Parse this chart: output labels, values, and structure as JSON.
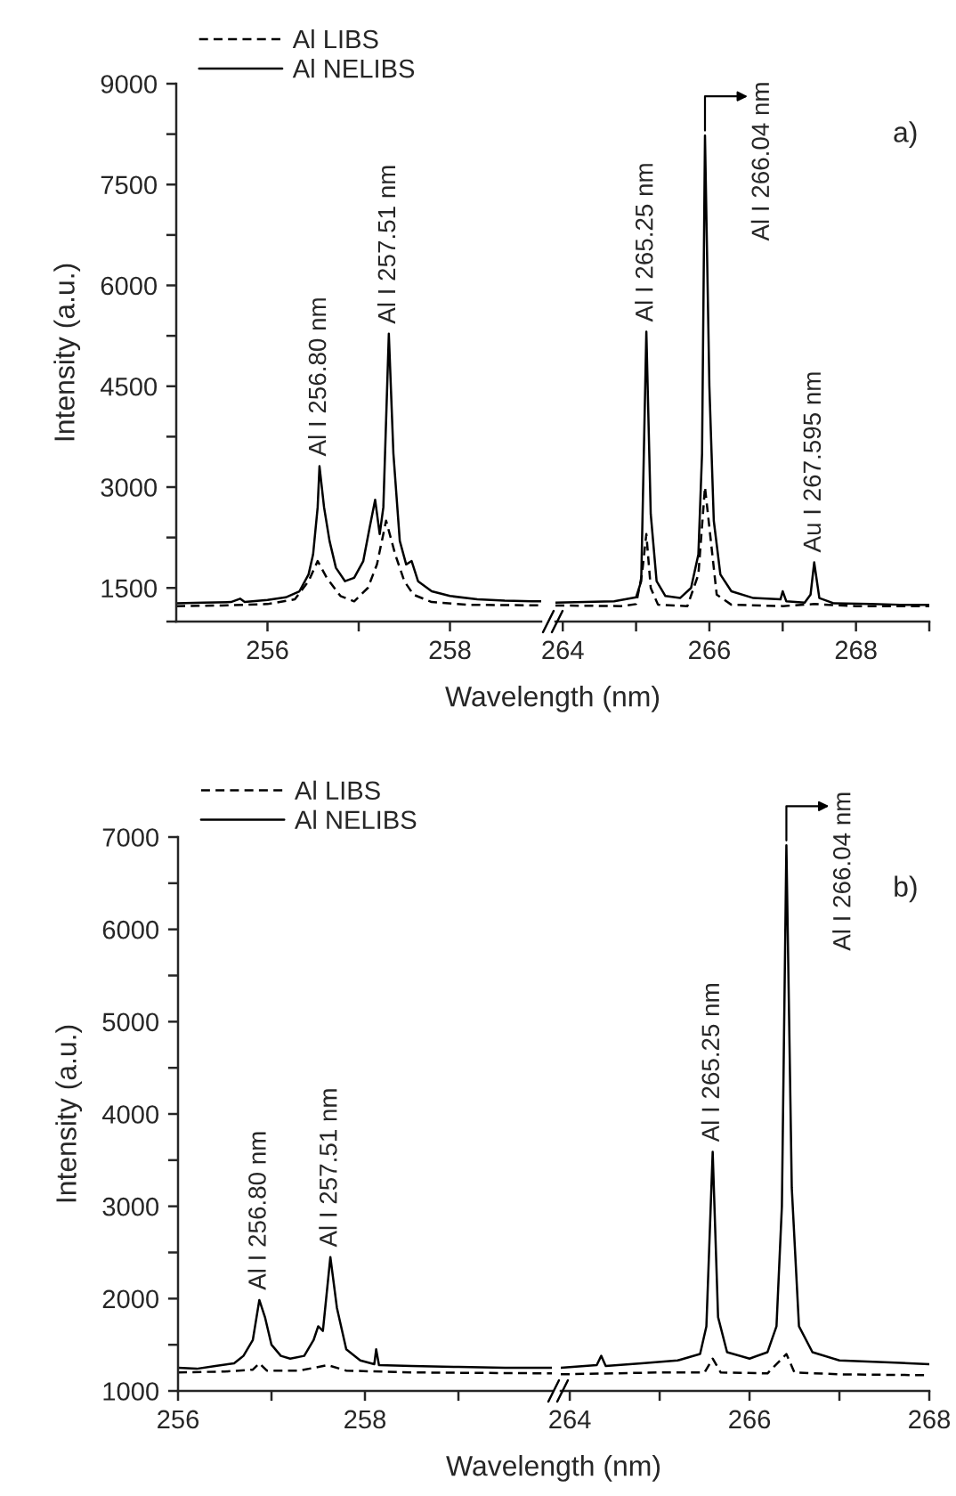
{
  "chart_data": [
    {
      "type": "line",
      "ylabel": "Intensity (a.u.)",
      "xlabel": "Wavelength (nm)",
      "legend": "top left",
      "marker": "none",
      "grid": false,
      "xlim": [
        255,
        259
      ],
      "xticks": [
        256,
        {
          "value": 257,
          "label": null
        },
        258
      ],
      "ylim": [
        1000,
        9000
      ],
      "yticks": [
        {
          "value": 1000,
          "label": null
        },
        1500,
        {
          "value": 2250,
          "label": null
        },
        3000,
        {
          "value": 3750,
          "label": null
        },
        4500,
        {
          "value": 5250,
          "label": null
        },
        6000,
        {
          "value": 6750,
          "label": null
        },
        7500,
        {
          "value": 8250,
          "label": null
        },
        9000
      ],
      "series": [
        {
          "name": "Al LIBS",
          "color": "#000000",
          "line_style": "dashed",
          "x": [
            255.0,
            255.5,
            256.0,
            256.3,
            256.45,
            256.55,
            256.65,
            256.8,
            256.95,
            257.1,
            257.2,
            257.3,
            257.4,
            257.5,
            257.6,
            257.8,
            258.2,
            259.0
          ],
          "values": [
            1230,
            1240,
            1260,
            1330,
            1600,
            1900,
            1650,
            1380,
            1300,
            1500,
            1850,
            2500,
            2000,
            1600,
            1400,
            1290,
            1250,
            1240
          ]
        },
        {
          "name": "Al NELIBS",
          "color": "#000000",
          "line_style": "solid",
          "x": [
            255.0,
            255.3,
            255.6,
            255.7,
            255.75,
            256.0,
            256.2,
            256.35,
            256.45,
            256.5,
            256.55,
            256.57,
            256.62,
            256.68,
            256.75,
            256.85,
            256.95,
            257.05,
            257.12,
            257.18,
            257.23,
            257.27,
            257.33,
            257.38,
            257.45,
            257.52,
            257.58,
            257.65,
            257.8,
            258.0,
            258.3,
            258.6,
            258.9,
            259.0
          ],
          "values": [
            1270,
            1280,
            1290,
            1340,
            1290,
            1320,
            1360,
            1450,
            1700,
            2000,
            2700,
            3310,
            2700,
            2200,
            1800,
            1600,
            1650,
            1900,
            2400,
            2810,
            2300,
            2700,
            5280,
            3500,
            2200,
            1850,
            1900,
            1600,
            1450,
            1380,
            1330,
            1310,
            1300,
            1300
          ]
        }
      ],
      "annotations": [
        {
          "text": "Al I 256.80 nm",
          "x": 256.57,
          "y": 3310
        },
        {
          "text": "Al I 257.51 nm",
          "x": 257.33,
          "y": 5280
        }
      ]
    },
    {
      "type": "line",
      "tick_labels": "x",
      "marker": "none",
      "grid": false,
      "xlim": [
        263.9,
        269
      ],
      "xticks": [
        264,
        {
          "value": 265,
          "label": null
        },
        266,
        {
          "value": 267,
          "label": null
        },
        268,
        {
          "value": 269,
          "label": null
        }
      ],
      "ylim": [
        1000,
        9000
      ],
      "series": [
        {
          "color": "#000000",
          "line_style": "dashed",
          "x": [
            263.9,
            264.8,
            265.0,
            265.08,
            265.14,
            265.2,
            265.3,
            265.7,
            265.85,
            265.94,
            266.02,
            266.1,
            266.3,
            267.0,
            267.43,
            268.0,
            269.0
          ],
          "values": [
            1240,
            1230,
            1260,
            1700,
            2300,
            1500,
            1250,
            1230,
            1700,
            3000,
            2200,
            1400,
            1250,
            1230,
            1260,
            1230,
            1230
          ]
        },
        {
          "color": "#000000",
          "line_style": "solid",
          "x": [
            263.9,
            264.3,
            264.7,
            265.0,
            265.07,
            265.14,
            265.2,
            265.28,
            265.4,
            265.6,
            265.75,
            265.85,
            265.9,
            265.94,
            266.0,
            266.06,
            266.15,
            266.3,
            266.6,
            266.97,
            267.0,
            267.05,
            267.3,
            267.38,
            267.43,
            267.5,
            267.7,
            268.2,
            268.6,
            269.0
          ],
          "values": [
            1280,
            1290,
            1300,
            1360,
            1600,
            5310,
            2600,
            1600,
            1380,
            1350,
            1500,
            2000,
            3500,
            8230,
            4500,
            2500,
            1700,
            1450,
            1350,
            1330,
            1450,
            1300,
            1280,
            1400,
            1880,
            1350,
            1270,
            1260,
            1250,
            1250
          ]
        }
      ],
      "annotations": [
        "a)",
        {
          "text": "Al I 265.25 nm",
          "x": 265.14,
          "y": 5310
        },
        {
          "text": "Al I 266.04 nm",
          "x": 265.94,
          "y": 8230
        },
        {
          "text": "Au I 267.595 nm",
          "x": 267.43,
          "y": 1880
        }
      ]
    },
    {
      "type": "line",
      "ylabel": "Intensity (a.u.)",
      "xlabel": "Wavelength (nm)",
      "legend": "top left",
      "marker": "none",
      "grid": false,
      "xlim": [
        256,
        260
      ],
      "xticks": [
        256,
        {
          "value": 257,
          "label": null
        },
        258,
        {
          "value": 259,
          "label": null
        }
      ],
      "ylim": [
        1000,
        7000
      ],
      "yticks": [
        1000,
        {
          "value": 1500,
          "label": null
        },
        2000,
        {
          "value": 2500,
          "label": null
        },
        3000,
        {
          "value": 3500,
          "label": null
        },
        4000,
        {
          "value": 4500,
          "label": null
        },
        5000,
        {
          "value": 5500,
          "label": null
        },
        6000,
        {
          "value": 6500,
          "label": null
        },
        7000
      ],
      "series": [
        {
          "name": "Al LIBS",
          "color": "#000000",
          "line_style": "dashed",
          "x": [
            256.0,
            256.5,
            256.8,
            256.87,
            256.95,
            257.3,
            257.6,
            257.8,
            258.5,
            260.0
          ],
          "values": [
            1200,
            1210,
            1230,
            1300,
            1220,
            1220,
            1280,
            1220,
            1200,
            1190
          ]
        },
        {
          "name": "Al NELIBS",
          "color": "#000000",
          "line_style": "solid",
          "x": [
            256.0,
            256.2,
            256.4,
            256.6,
            256.7,
            256.8,
            256.87,
            256.93,
            257.0,
            257.1,
            257.2,
            257.35,
            257.45,
            257.5,
            257.55,
            257.63,
            257.7,
            257.8,
            257.95,
            258.1,
            258.12,
            258.15,
            258.5,
            259.0,
            259.5,
            260.0
          ],
          "values": [
            1250,
            1240,
            1270,
            1300,
            1380,
            1550,
            1985,
            1800,
            1500,
            1380,
            1350,
            1380,
            1550,
            1700,
            1650,
            2450,
            1900,
            1450,
            1330,
            1290,
            1450,
            1280,
            1270,
            1260,
            1250,
            1250
          ]
        }
      ],
      "annotations": [
        {
          "text": "Al I 256.80 nm",
          "x": 256.87,
          "y": 1985
        },
        {
          "text": "Al I 257.51 nm",
          "x": 257.63,
          "y": 2450
        }
      ]
    },
    {
      "type": "line",
      "tick_labels": "x",
      "marker": "none",
      "grid": false,
      "xlim": [
        263.9,
        268
      ],
      "xticks": [
        264,
        {
          "value": 265,
          "label": null
        },
        266,
        {
          "value": 267,
          "label": null
        },
        268
      ],
      "ylim": [
        1000,
        7000
      ],
      "series": [
        {
          "color": "#000000",
          "line_style": "dashed",
          "x": [
            263.9,
            265.0,
            265.5,
            265.59,
            265.68,
            266.2,
            266.41,
            266.5,
            267.0,
            268.0
          ],
          "values": [
            1180,
            1200,
            1200,
            1350,
            1200,
            1190,
            1400,
            1200,
            1180,
            1170
          ]
        },
        {
          "color": "#000000",
          "line_style": "solid",
          "x": [
            263.9,
            264.3,
            264.35,
            264.4,
            264.8,
            265.2,
            265.45,
            265.52,
            265.59,
            265.65,
            265.75,
            266.0,
            266.2,
            266.3,
            266.36,
            266.41,
            266.47,
            266.55,
            266.7,
            267.0,
            267.5,
            268.0
          ],
          "values": [
            1250,
            1280,
            1380,
            1270,
            1300,
            1330,
            1400,
            1700,
            3590,
            1800,
            1420,
            1350,
            1420,
            1700,
            3000,
            6910,
            3200,
            1700,
            1420,
            1330,
            1310,
            1290
          ]
        }
      ],
      "annotations": [
        "b)",
        {
          "text": "Al I 265.25 nm",
          "x": 265.59,
          "y": 3590
        },
        {
          "text": "Al I 266.04 nm",
          "x": 266.41,
          "y": 6910
        }
      ]
    }
  ]
}
